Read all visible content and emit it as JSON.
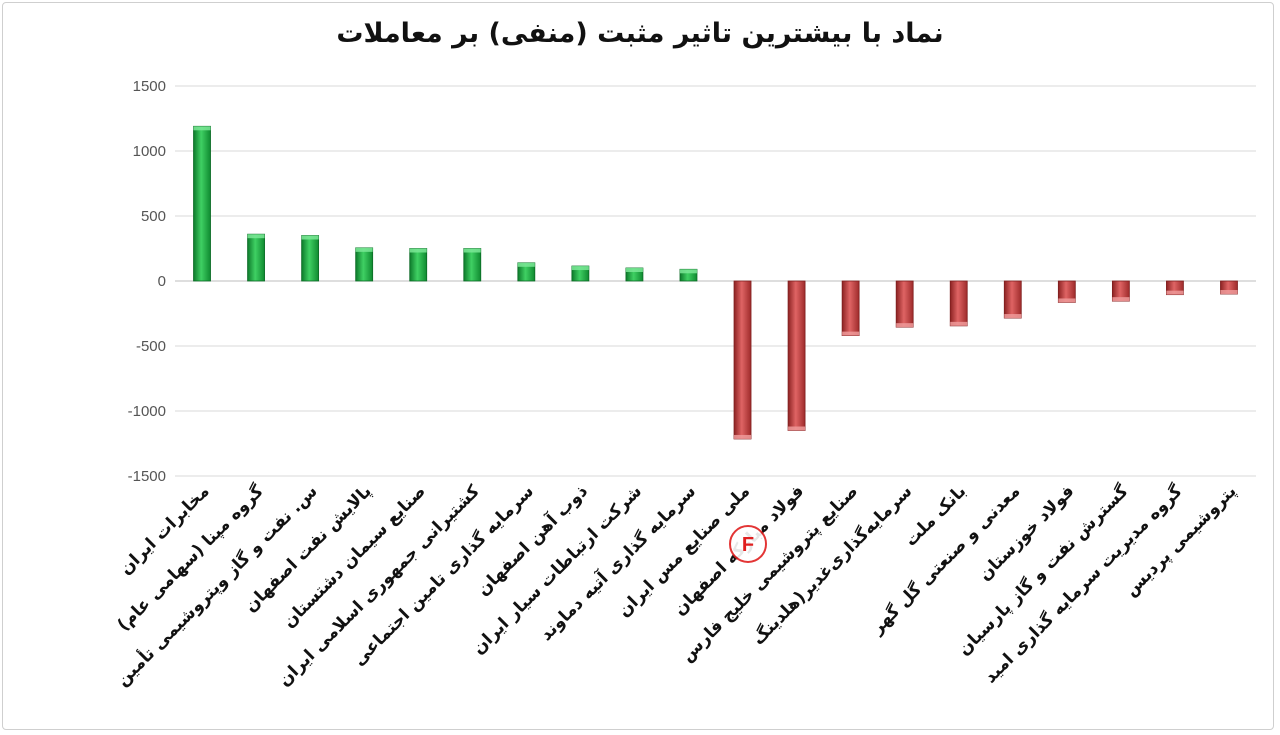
{
  "chart_data": {
    "type": "bar",
    "title": "نماد با بیشترین تاثیر مثبت (منفی) بر معاملات",
    "xlabel": "",
    "ylabel": "",
    "ylim": [
      -1500,
      1500
    ],
    "yticks": [
      1500,
      1000,
      500,
      0,
      -500,
      -1000,
      -1500
    ],
    "grid": true,
    "categories": [
      "مخابرات ایران",
      "گروه مپنا (سهامی عام)",
      "س. نفت و گاز وپتروشیمی تأمین",
      "پالایش نفت اصفهان",
      "صنایع سیمان دشتستان",
      "کشتیرانی جمهوری اسلامی ایران",
      "سرمایه گذاری تامین اجتماعی",
      "ذوب آهن اصفهان",
      "شرکت ارتباطات سیار ایران",
      "سرمایه گذاری آتیه دماوند",
      "ملی صنایع مس ایران",
      "فولاد مبارکه اصفهان",
      "صنایع پتروشیمی خلیج فارس",
      "سرمایه‌گذاری‌غدیر(هلدینگ",
      "بانک ملت",
      "معدنی و صنعتی گل گهر",
      "فولاد خوزستان",
      "گسترش نفت و گاز پارسیان",
      "گروه مدیریت سرمایه گذاری امید",
      "پتروشیمی پردیس"
    ],
    "values": [
      1190,
      360,
      350,
      255,
      250,
      250,
      140,
      115,
      100,
      90,
      -1215,
      -1150,
      -420,
      -355,
      -345,
      -285,
      -165,
      -155,
      -105,
      -100
    ],
    "colors": {
      "positive": "#1aa33e",
      "negative": "#b83a3a"
    }
  },
  "watermark": {
    "glyph": "F",
    "color": "#e02020"
  }
}
